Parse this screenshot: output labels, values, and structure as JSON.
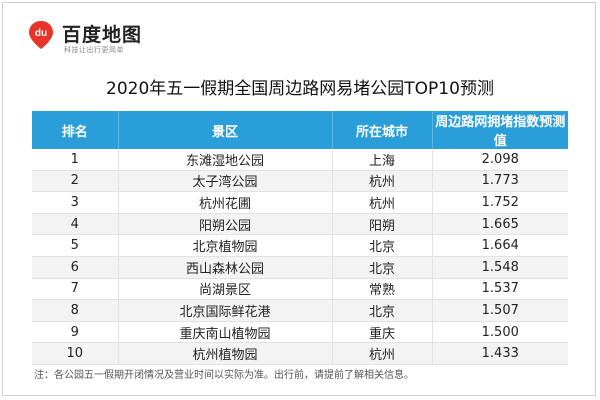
{
  "brand": {
    "logo_text": "du",
    "name": "百度地图",
    "slogan": "科技让出行更简单",
    "colors": {
      "logo_red": "#e8352a",
      "header_blue": "#2a9ed9"
    }
  },
  "title": "2020年五一假期全国周边路网易堵公园TOP10预测",
  "table": {
    "headers": [
      "排名",
      "景区",
      "所在城市",
      "周边路网拥堵指数预测值"
    ],
    "rows": [
      [
        "1",
        "东滩湿地公园",
        "上海",
        "2.098"
      ],
      [
        "2",
        "太子湾公园",
        "杭州",
        "1.773"
      ],
      [
        "3",
        "杭州花圃",
        "杭州",
        "1.752"
      ],
      [
        "4",
        "阳朔公园",
        "阳朔",
        "1.665"
      ],
      [
        "5",
        "北京植物园",
        "北京",
        "1.664"
      ],
      [
        "6",
        "西山森林公园",
        "北京",
        "1.548"
      ],
      [
        "7",
        "尚湖景区",
        "常熟",
        "1.537"
      ],
      [
        "8",
        "北京国际鲜花港",
        "北京",
        "1.507"
      ],
      [
        "9",
        "重庆南山植物园",
        "重庆",
        "1.500"
      ],
      [
        "10",
        "杭州植物园",
        "杭州",
        "1.433"
      ]
    ]
  },
  "note": "注：各公园五一假期开闭情况及营业时间以实际为准。出行前，请提前了解相关信息。"
}
